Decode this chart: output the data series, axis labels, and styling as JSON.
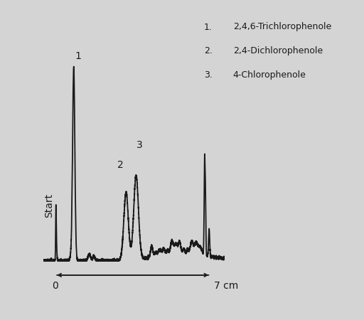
{
  "background_color": "#d4d4d4",
  "line_color": "#1a1a1a",
  "line_width": 1.3,
  "xlim": [
    -0.5,
    8.0
  ],
  "ylim": [
    -0.08,
    1.08
  ],
  "legend_items": [
    [
      "1.",
      "2,4,6-Trichlorophenole"
    ],
    [
      "2.",
      "2,4-Dichlorophenole"
    ],
    [
      "3.",
      "4-Chlorophenole"
    ]
  ],
  "start_label": "Start",
  "axis_label_0": "0",
  "axis_label_7": "7 cm",
  "peak1_label": "1",
  "peak2_label": "2",
  "peak3_label": "3"
}
